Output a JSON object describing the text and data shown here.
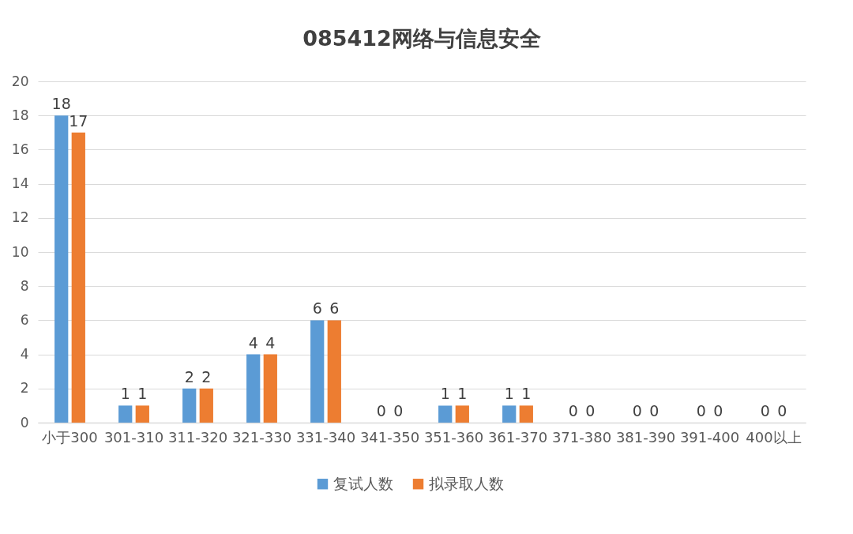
{
  "chart_data": {
    "type": "bar",
    "title": "085412网络与信息安全",
    "categories": [
      "小于300",
      "301-310",
      "311-320",
      "321-330",
      "331-340",
      "341-350",
      "351-360",
      "361-370",
      "371-380",
      "381-390",
      "391-400",
      "400以上"
    ],
    "series": [
      {
        "name": "复试人数",
        "color": "#5b9bd5",
        "values": [
          18,
          1,
          2,
          4,
          6,
          0,
          1,
          1,
          0,
          0,
          0,
          0
        ]
      },
      {
        "name": "拟录取人数",
        "color": "#ed7d31",
        "values": [
          17,
          1,
          2,
          4,
          6,
          0,
          1,
          1,
          0,
          0,
          0,
          0
        ]
      }
    ],
    "ylim": [
      0,
      20
    ],
    "yticks": [
      0,
      2,
      4,
      6,
      8,
      10,
      12,
      14,
      16,
      18,
      20
    ],
    "grid": "y",
    "legend": "bottom",
    "data_labels": true
  }
}
